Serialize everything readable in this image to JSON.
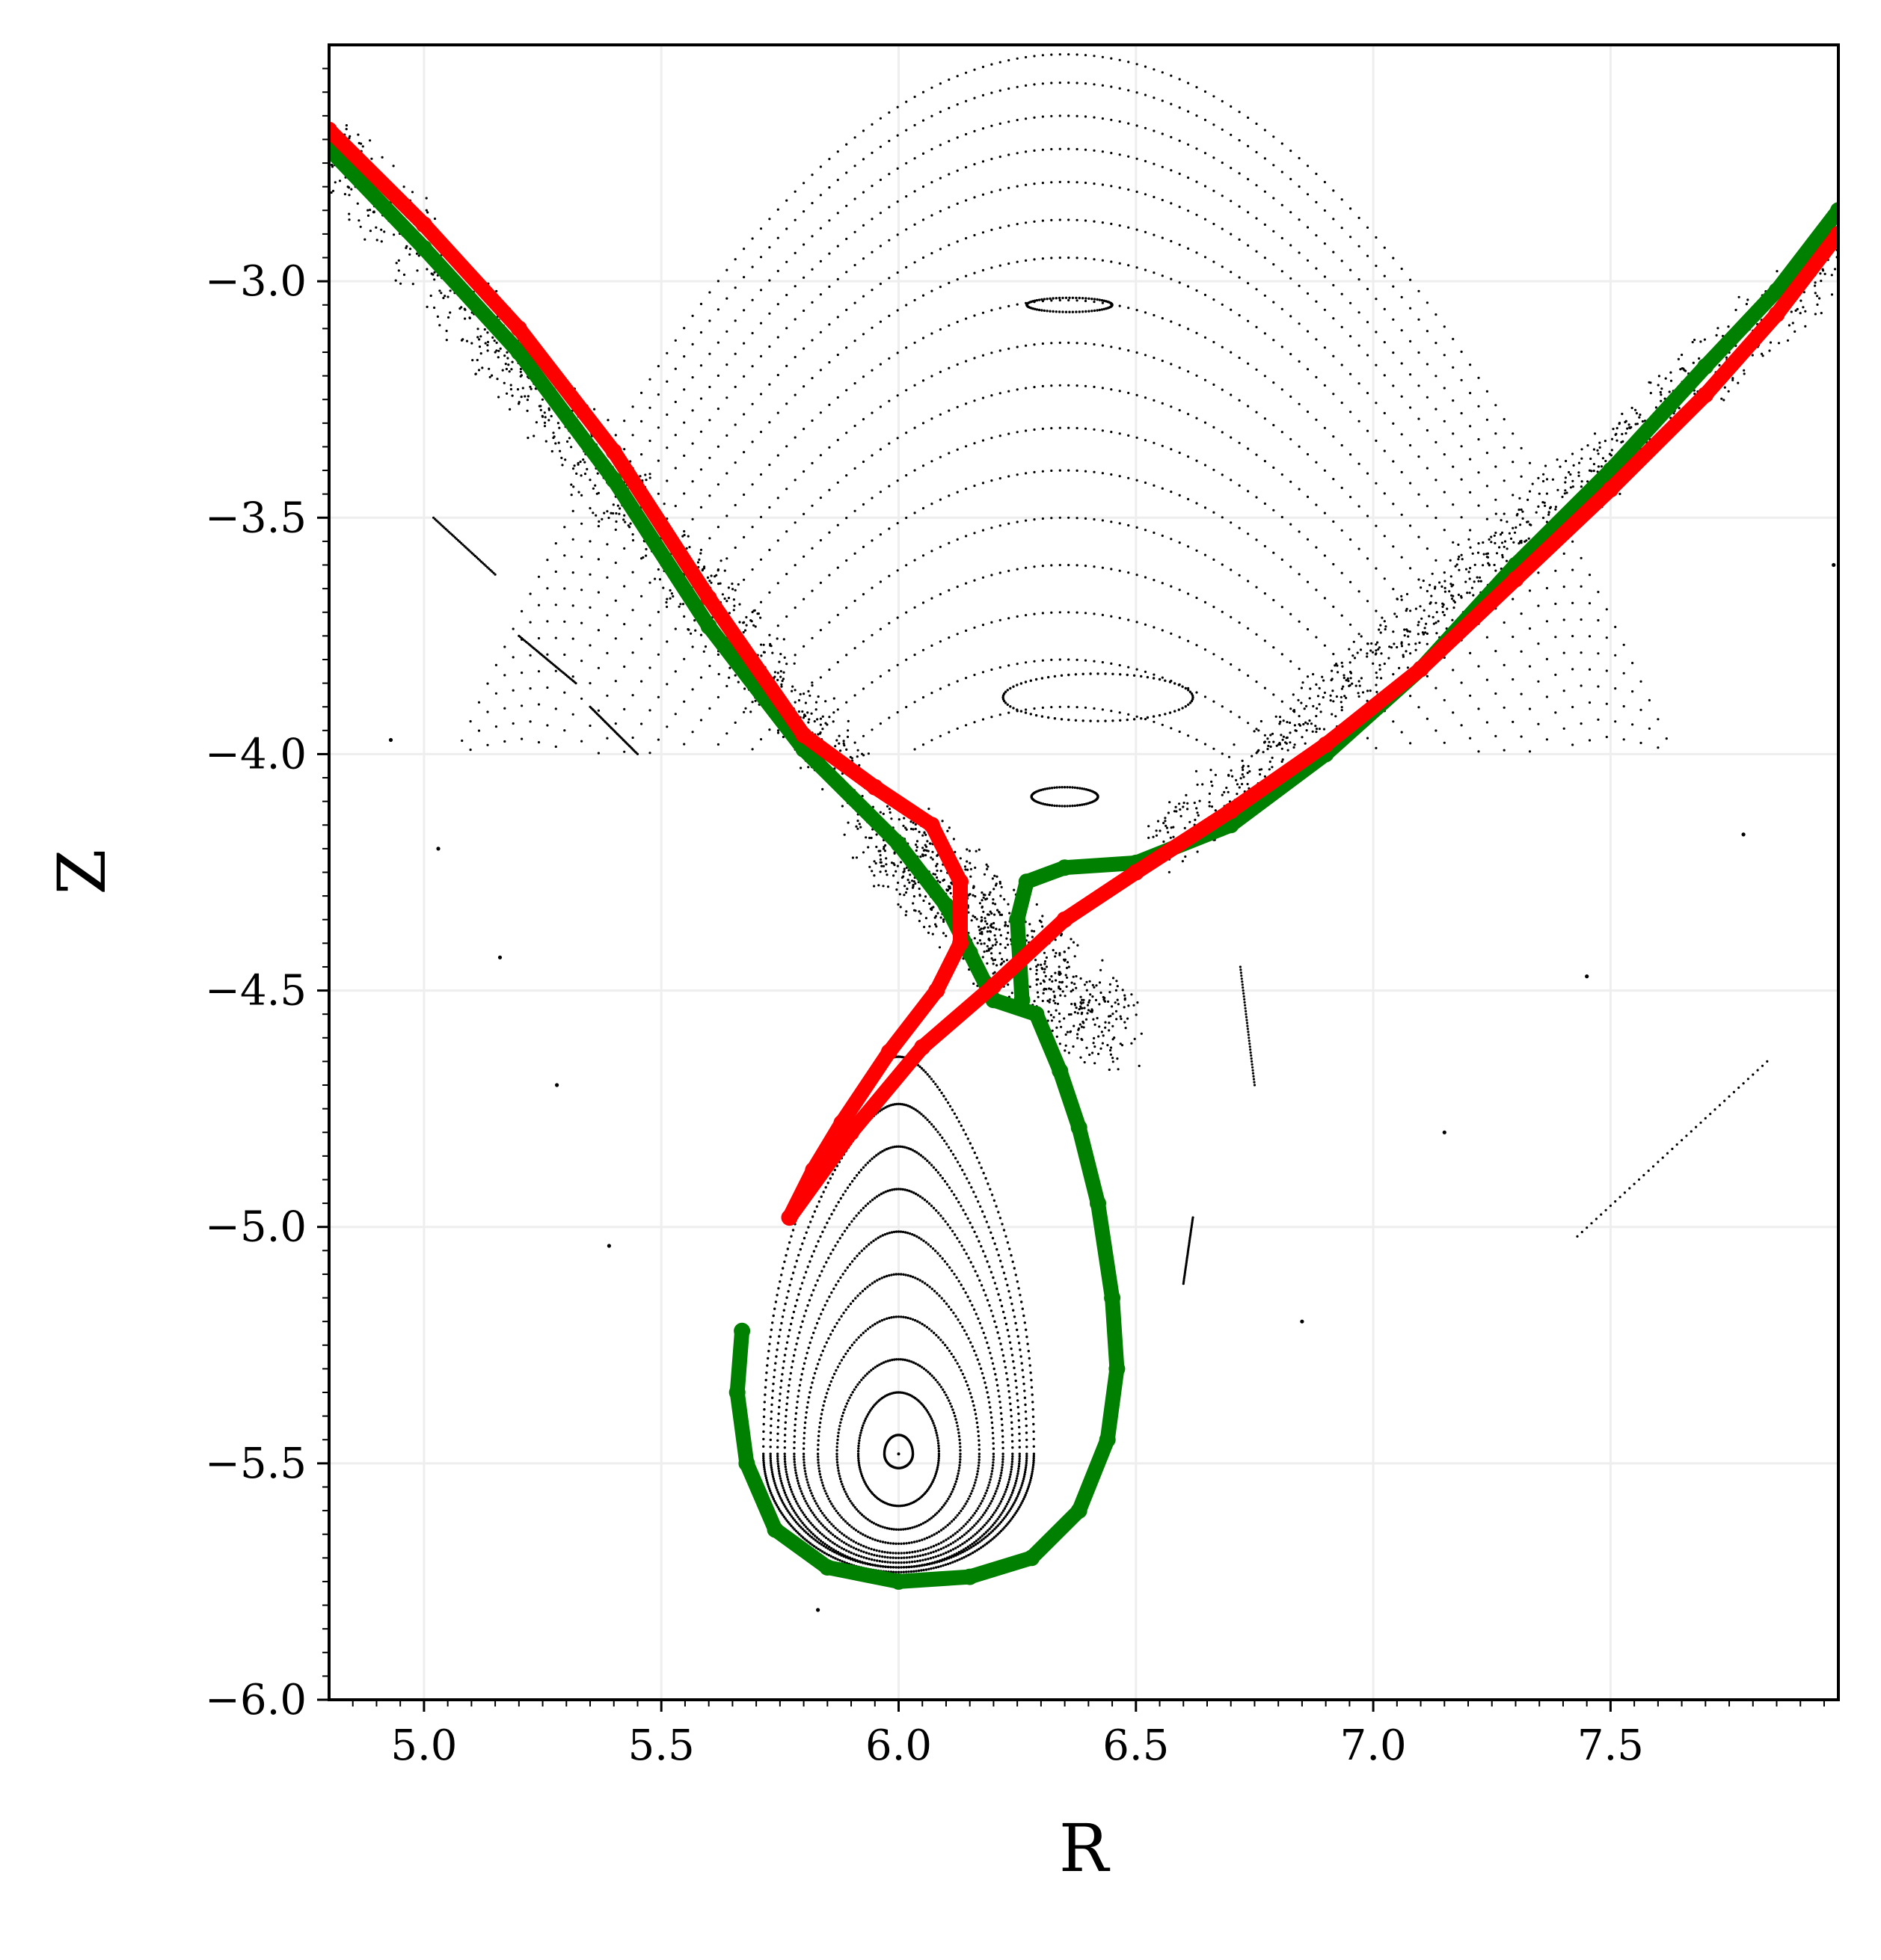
{
  "chart_data": {
    "type": "scatter",
    "title": "",
    "xlabel": "R",
    "ylabel": "Z",
    "xlim": [
      4.8,
      7.98
    ],
    "ylim": [
      -6.0,
      -2.5
    ],
    "grid": true,
    "x_ticks": [
      5.0,
      5.5,
      6.0,
      6.5,
      7.0,
      7.5
    ],
    "y_ticks": [
      -6.0,
      -5.5,
      -5.0,
      -4.5,
      -4.0,
      -3.5,
      -3.0
    ],
    "x_tick_labels": [
      "5.0",
      "5.5",
      "6.0",
      "6.5",
      "7.0",
      "7.5"
    ],
    "y_tick_labels": [
      "−6.0",
      "−5.5",
      "−5.0",
      "−4.5",
      "−4.0",
      "−3.5",
      "−3.0"
    ],
    "colors": {
      "poincare": "#000000",
      "separatrix_green": "#008000",
      "separatrix_red": "#ff0000",
      "grid": "#eeeeee"
    },
    "series": [
      {
        "kind": "poincare-closed-surfaces",
        "color": "#000000",
        "o_point": [
          6.0,
          -5.48
        ],
        "x_point": [
          6.2,
          -4.45
        ],
        "surfaces": [
          {
            "half_width": 0.03,
            "top": -5.44,
            "bottom": -5.51
          },
          {
            "half_width": 0.085,
            "top": -5.35,
            "bottom": -5.59
          },
          {
            "half_width": 0.13,
            "top": -5.28,
            "bottom": -5.64
          },
          {
            "half_width": 0.17,
            "top": -5.19,
            "bottom": -5.67
          },
          {
            "half_width": 0.2,
            "top": -5.1,
            "bottom": -5.69
          },
          {
            "half_width": 0.22,
            "top": -5.01,
            "bottom": -5.7
          },
          {
            "half_width": 0.24,
            "top": -4.92,
            "bottom": -5.71
          },
          {
            "half_width": 0.255,
            "top": -4.83,
            "bottom": -5.72
          },
          {
            "half_width": 0.27,
            "top": -4.74,
            "bottom": -5.72
          },
          {
            "half_width": 0.285,
            "top": -4.64,
            "bottom": -5.73
          }
        ]
      },
      {
        "kind": "poincare-open-surfaces",
        "color": "#000000",
        "center_r": 6.35,
        "curves": [
          {
            "z_center": -2.52,
            "curvature": 1.0
          },
          {
            "z_center": -2.58,
            "curvature": 1.0
          },
          {
            "z_center": -2.65,
            "curvature": 1.0
          },
          {
            "z_center": -2.72,
            "curvature": 1.0
          },
          {
            "z_center": -2.79,
            "curvature": 1.0
          },
          {
            "z_center": -2.87,
            "curvature": 1.0
          },
          {
            "z_center": -2.95,
            "curvature": 1.0
          },
          {
            "z_center": -3.04,
            "curvature": 1.0
          },
          {
            "z_center": -3.13,
            "curvature": 1.0
          },
          {
            "z_center": -3.22,
            "curvature": 1.0
          },
          {
            "z_center": -3.31,
            "curvature": 1.0
          },
          {
            "z_center": -3.4,
            "curvature": 1.0
          },
          {
            "z_center": -3.5,
            "curvature": 1.0
          },
          {
            "z_center": -3.6,
            "curvature": 1.0
          },
          {
            "z_center": -3.7,
            "curvature": 1.0
          },
          {
            "z_center": -3.8,
            "curvature": 1.0
          },
          {
            "z_center": -3.9,
            "curvature": 1.0
          }
        ],
        "islands": [
          {
            "r": 6.42,
            "z": -3.88,
            "rx": 0.2,
            "rz": 0.05
          },
          {
            "r": 6.35,
            "z": -4.09,
            "rx": 0.07,
            "rz": 0.02
          },
          {
            "r": 6.36,
            "z": -3.05,
            "rx": 0.09,
            "rz": 0.015
          }
        ]
      },
      {
        "kind": "stochastic-layer",
        "color": "#000000",
        "legs": [
          {
            "from": [
              4.8,
              -2.7
            ],
            "to": [
              5.9,
              -4.05
            ],
            "width": 0.12
          },
          {
            "from": [
              6.55,
              -4.2
            ],
            "to": [
              7.98,
              -2.95
            ],
            "width": 0.11
          },
          {
            "from": [
              5.95,
              -4.15
            ],
            "to": [
              6.45,
              -4.6
            ],
            "width": 0.16
          }
        ]
      },
      {
        "kind": "scatter-lines",
        "color": "#000000",
        "segments": [
          {
            "from": [
              7.43,
              -5.02
            ],
            "to": [
              7.83,
              -4.65
            ]
          },
          {
            "from": [
              5.02,
              -3.5
            ],
            "to": [
              5.15,
              -3.62
            ]
          },
          {
            "from": [
              5.2,
              -3.75
            ],
            "to": [
              5.32,
              -3.85
            ]
          },
          {
            "from": [
              5.35,
              -3.9
            ],
            "to": [
              5.45,
              -4.0
            ]
          },
          {
            "from": [
              6.72,
              -4.45
            ],
            "to": [
              6.75,
              -4.7
            ]
          },
          {
            "from": [
              6.62,
              -4.98
            ],
            "to": [
              6.6,
              -5.12
            ]
          }
        ],
        "points": [
          [
            4.93,
            -3.97
          ],
          [
            5.03,
            -4.2
          ],
          [
            5.16,
            -4.43
          ],
          [
            5.28,
            -4.7
          ],
          [
            5.39,
            -5.04
          ],
          [
            6.85,
            -5.2
          ],
          [
            7.15,
            -4.8
          ],
          [
            7.45,
            -4.47
          ],
          [
            7.78,
            -4.17
          ],
          [
            7.97,
            -3.6
          ],
          [
            5.83,
            -5.81
          ]
        ]
      },
      {
        "kind": "separatrix-leg",
        "name": "",
        "color": "#008000",
        "points": [
          [
            4.8,
            -2.72
          ],
          [
            5.0,
            -2.93
          ],
          [
            5.2,
            -3.15
          ],
          [
            5.4,
            -3.42
          ],
          [
            5.6,
            -3.73
          ],
          [
            5.8,
            -3.99
          ],
          [
            6.0,
            -4.19
          ],
          [
            6.1,
            -4.32
          ],
          [
            6.15,
            -4.42
          ],
          [
            6.2,
            -4.52
          ],
          [
            6.29,
            -4.55
          ],
          [
            6.34,
            -4.67
          ],
          [
            6.38,
            -4.79
          ],
          [
            6.42,
            -4.95
          ],
          [
            6.45,
            -5.15
          ],
          [
            6.46,
            -5.3
          ],
          [
            6.44,
            -5.45
          ],
          [
            6.38,
            -5.6
          ],
          [
            6.28,
            -5.7
          ],
          [
            6.15,
            -5.74
          ],
          [
            6.0,
            -5.75
          ],
          [
            5.85,
            -5.72
          ],
          [
            5.74,
            -5.64
          ],
          [
            5.68,
            -5.5
          ],
          [
            5.66,
            -5.35
          ],
          [
            5.67,
            -5.22
          ]
        ]
      },
      {
        "kind": "separatrix-leg",
        "name": "",
        "color": "#008000",
        "points": [
          [
            6.26,
            -4.52
          ],
          [
            6.25,
            -4.35
          ],
          [
            6.27,
            -4.27
          ],
          [
            6.35,
            -4.24
          ],
          [
            6.5,
            -4.23
          ],
          [
            6.7,
            -4.15
          ],
          [
            6.9,
            -4.0
          ],
          [
            7.1,
            -3.82
          ],
          [
            7.3,
            -3.6
          ],
          [
            7.5,
            -3.4
          ],
          [
            7.7,
            -3.18
          ],
          [
            7.85,
            -3.02
          ],
          [
            7.98,
            -2.85
          ]
        ]
      },
      {
        "kind": "separatrix-leg",
        "name": "",
        "color": "#ff0000",
        "points": [
          [
            4.8,
            -2.68
          ],
          [
            5.0,
            -2.88
          ],
          [
            5.2,
            -3.1
          ],
          [
            5.4,
            -3.36
          ],
          [
            5.6,
            -3.67
          ],
          [
            5.8,
            -3.96
          ],
          [
            5.95,
            -4.07
          ],
          [
            6.07,
            -4.15
          ],
          [
            6.13,
            -4.27
          ],
          [
            6.13,
            -4.4
          ],
          [
            6.08,
            -4.5
          ],
          [
            5.98,
            -4.63
          ],
          [
            5.88,
            -4.78
          ],
          [
            5.82,
            -4.88
          ],
          [
            5.77,
            -4.98
          ]
        ]
      },
      {
        "kind": "separatrix-leg",
        "name": "",
        "color": "#ff0000",
        "points": [
          [
            5.77,
            -4.98
          ],
          [
            5.9,
            -4.8
          ],
          [
            6.05,
            -4.62
          ],
          [
            6.2,
            -4.49
          ],
          [
            6.35,
            -4.35
          ],
          [
            6.5,
            -4.25
          ],
          [
            6.7,
            -4.12
          ],
          [
            6.9,
            -3.98
          ],
          [
            7.1,
            -3.82
          ],
          [
            7.3,
            -3.63
          ],
          [
            7.5,
            -3.44
          ],
          [
            7.7,
            -3.24
          ],
          [
            7.85,
            -3.07
          ],
          [
            7.98,
            -2.9
          ]
        ]
      }
    ]
  }
}
